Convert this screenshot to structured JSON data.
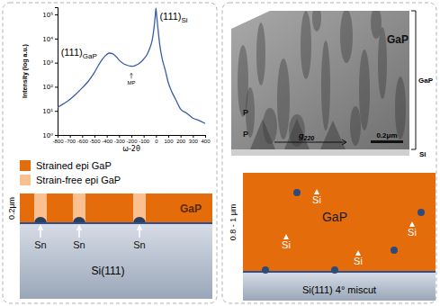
{
  "chart_data": {
    "type": "line",
    "log": "y",
    "color": "#3a5ea8",
    "x": [
      -800,
      -750,
      -700,
      -650,
      -600,
      -550,
      -500,
      -450,
      -400,
      -380,
      -350,
      -320,
      -300,
      -270,
      -240,
      -210,
      -190,
      -160,
      -130,
      -100,
      -70,
      -50,
      -30,
      -15,
      -5,
      0,
      5,
      15,
      30,
      50,
      75,
      100,
      130,
      160,
      200,
      250,
      300,
      350,
      400
    ],
    "values": [
      14,
      20,
      30,
      50,
      90,
      170,
      400,
      1100,
      2200,
      2500,
      2300,
      1700,
      1300,
      950,
      800,
      720,
      710,
      800,
      1000,
      1400,
      2300,
      4000,
      9000,
      30000,
      100000,
      180000,
      100000,
      30000,
      6000,
      1500,
      500,
      150,
      60,
      30,
      12,
      8,
      5,
      4,
      3
    ],
    "xlim": [
      -800,
      400
    ],
    "xticks": [
      -800,
      -700,
      -600,
      -500,
      -400,
      -300,
      -200,
      -100,
      0,
      100,
      200,
      300,
      400
    ],
    "ylim": [
      1,
      200000
    ],
    "yticks": [
      {
        "value": 1,
        "label": "10⁰"
      },
      {
        "value": 10,
        "label": "10¹"
      },
      {
        "value": 100,
        "label": "10²"
      },
      {
        "value": 1000,
        "label": "10³"
      },
      {
        "value": 10000,
        "label": "10⁴"
      },
      {
        "value": 100000,
        "label": "10⁵"
      }
    ],
    "xlabel": "ω-2θ",
    "ylabel": "Intensity (log a.u.)",
    "annotations": [
      {
        "text": "(111)",
        "subscript": "GaP",
        "x": -480,
        "y": 2000
      },
      {
        "text": "(111)",
        "subscript": "Si",
        "x": 30,
        "y": 60000
      },
      {
        "text": "MP",
        "x": -200,
        "y": 200
      }
    ]
  },
  "left_schematic": {
    "legend": [
      {
        "label": "Strained epi GaP",
        "color": "#e46c0a"
      },
      {
        "label": "Strain-free epi GaP",
        "color": "#fac090"
      }
    ],
    "thickness": "0.2μm",
    "layer": "GaP",
    "nodules": [
      "Sn",
      "Sn",
      "Sn"
    ],
    "substrate": "Si(111)"
  },
  "tem_image": {
    "layer": "GaP",
    "inner_label": "GaP",
    "substrate": "Si",
    "defects": [
      "P",
      "P"
    ],
    "g_vector": "g",
    "g_vector_subscript": "220",
    "scale_bar": "0.2μm"
  },
  "right_schematic": {
    "thickness": "0.8 - 1 μm",
    "layer": "GaP",
    "inclusions": [
      "Si",
      "Si",
      "Si",
      "Si"
    ],
    "substrate": "Si(111) 4° miscut"
  }
}
